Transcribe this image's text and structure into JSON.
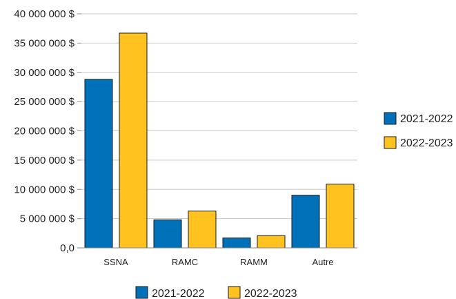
{
  "chart_data": {
    "type": "bar",
    "categories": [
      "SSNA",
      "RAMC",
      "RAMM",
      "Autre"
    ],
    "series": [
      {
        "name": "2021-2022",
        "color": "#0070b8",
        "values": [
          28800000,
          4800000,
          1700000,
          9000000
        ]
      },
      {
        "name": "2022-2023",
        "color": "#ffc21e",
        "values": [
          36700000,
          6300000,
          2100000,
          10900000
        ]
      }
    ],
    "y_ticks": [
      {
        "value": 0,
        "label": "0,0"
      },
      {
        "value": 5000000,
        "label": "5 000 000 $"
      },
      {
        "value": 10000000,
        "label": "10 000 000 $"
      },
      {
        "value": 15000000,
        "label": "15 000 000 $"
      },
      {
        "value": 20000000,
        "label": "20 000 000 $"
      },
      {
        "value": 25000000,
        "label": "25 000 000 $"
      },
      {
        "value": 30000000,
        "label": "30 000 000 $"
      },
      {
        "value": 35000000,
        "label": "35 000 000 $"
      },
      {
        "value": 40000000,
        "label": "40 000 000 $"
      }
    ],
    "ylim": [
      0,
      40000000
    ],
    "grid": true,
    "legend_placement": [
      "right",
      "bottom"
    ],
    "title": "",
    "xlabel": "",
    "ylabel": ""
  }
}
